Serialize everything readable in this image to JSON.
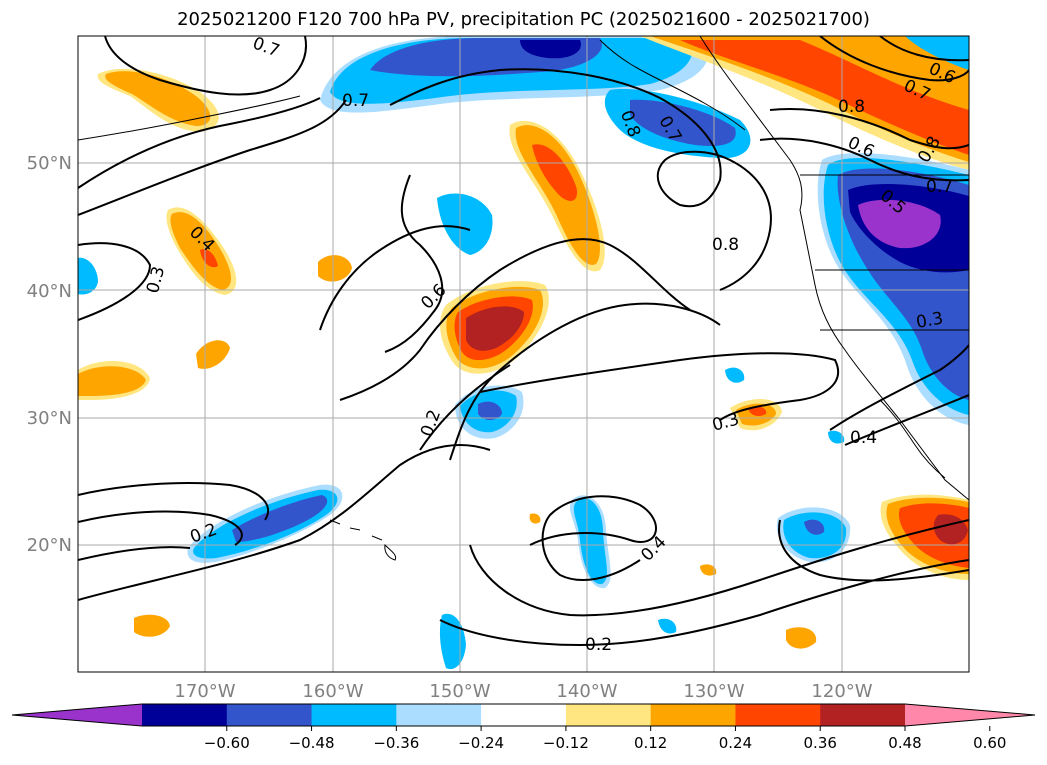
{
  "title": "2025021200 F120 700 hPa PV, precipitation PC (2025021600 - 2025021700)",
  "map": {
    "lon_range": [
      -180,
      -110
    ],
    "lat_range": [
      10,
      60
    ],
    "lat_ticks": [
      {
        "value": 20,
        "label": "20°N"
      },
      {
        "value": 30,
        "label": "30°N"
      },
      {
        "value": 40,
        "label": "40°N"
      },
      {
        "value": 50,
        "label": "50°N"
      }
    ],
    "lon_ticks": [
      {
        "value": -170,
        "label": "170°W"
      },
      {
        "value": -160,
        "label": "160°W"
      },
      {
        "value": -150,
        "label": "150°W"
      },
      {
        "value": -140,
        "label": "140°W"
      },
      {
        "value": -130,
        "label": "130°W"
      },
      {
        "value": -120,
        "label": "120°W"
      }
    ],
    "gridlines": true,
    "contour_labels": [
      "0.7",
      "0.7",
      "0.8",
      "0.7",
      "0.8",
      "0.6",
      "0.7",
      "0.8",
      "0.7",
      "0.6",
      "0.5",
      "0.8",
      "0.4",
      "0.3",
      "0.6",
      "0.2",
      "0.3",
      "0.4",
      "0.3",
      "0.2",
      "0.4",
      "0.2"
    ]
  },
  "colorbar": {
    "colors": [
      "#9933cc",
      "#000099",
      "#3355cc",
      "#00bbff",
      "#aaddff",
      "#ffffff",
      "#ffe680",
      "#ffa500",
      "#ff4500",
      "#b22222",
      "#ff88aa"
    ],
    "tick_labels": [
      "−0.60",
      "−0.48",
      "−0.36",
      "−0.24",
      "−0.12",
      "0.12",
      "0.24",
      "0.36",
      "0.48",
      "0.60"
    ],
    "extend": "both"
  }
}
